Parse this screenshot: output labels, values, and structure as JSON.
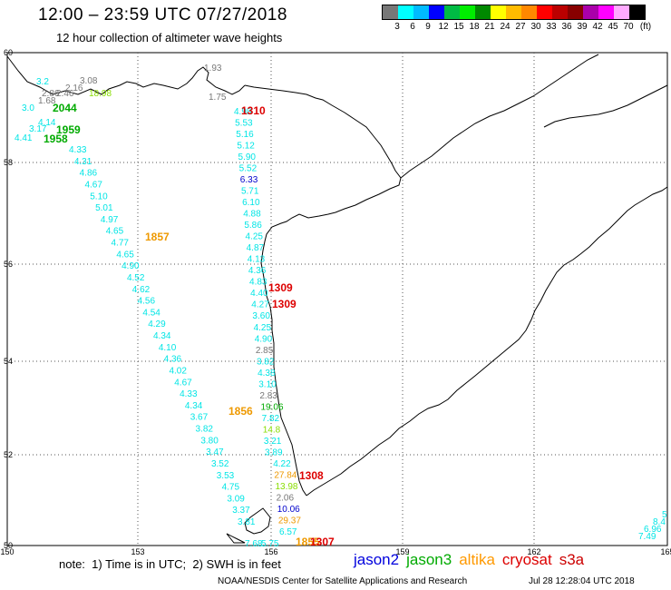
{
  "header": {
    "title": "12:00 – 23:59 UTC 07/27/2018",
    "subtitle": "12 hour collection of altimeter wave heights"
  },
  "legend": {
    "colors": [
      "#777777",
      "#00ffff",
      "#00bbff",
      "#0000ff",
      "#00bb44",
      "#00ee00",
      "#008800",
      "#ffff00",
      "#ffbb00",
      "#ff8800",
      "#ff0000",
      "#bb0000",
      "#880000",
      "#aa00aa",
      "#ff00ff",
      "#ffaaff",
      "#000000"
    ],
    "ticks": [
      "3",
      "6",
      "9",
      "12",
      "15",
      "18",
      "21",
      "24",
      "27",
      "30",
      "33",
      "36",
      "39",
      "42",
      "45",
      "70",
      "(ft)"
    ]
  },
  "axes": {
    "lon_ticks": [
      "150",
      "153",
      "156",
      "159",
      "162",
      "165"
    ],
    "lat_ticks": [
      "60",
      "58",
      "56",
      "54",
      "52",
      "50"
    ]
  },
  "colors": {
    "cyan": "#00e5e5",
    "gray": "#777777",
    "green": "#00aa00",
    "lightgreen": "#88dd00",
    "orange": "#ee9900",
    "red": "#dd0000",
    "blue": "#0000cc"
  },
  "track_a": {
    "color": "cyan",
    "values": [
      "4.33",
      "4.31",
      "4.86",
      "4.67",
      "5.10",
      "5.01",
      "4.97",
      "4.65",
      "4.77",
      "4.65",
      "4.90",
      "4.52",
      "4.62",
      "4.56",
      "4.54",
      "4.29",
      "4.34",
      "4.10",
      "4.36",
      "4.02",
      "4.67",
      "4.33",
      "4.34",
      "3.67",
      "3.82",
      "3.80",
      "3.47",
      "3.52",
      "3.53",
      "4.75",
      "3.09",
      "3.37",
      "3.81"
    ]
  },
  "track_b": {
    "values": [
      {
        "v": "4.98",
        "c": "cyan"
      },
      {
        "v": "5.53",
        "c": "cyan"
      },
      {
        "v": "5.16",
        "c": "cyan"
      },
      {
        "v": "5.12",
        "c": "cyan"
      },
      {
        "v": "5.90",
        "c": "cyan"
      },
      {
        "v": "5.52",
        "c": "cyan"
      },
      {
        "v": "6.33",
        "c": "blue"
      },
      {
        "v": "5.71",
        "c": "cyan"
      },
      {
        "v": "6.10",
        "c": "cyan"
      },
      {
        "v": "4.88",
        "c": "cyan"
      },
      {
        "v": "5.86",
        "c": "cyan"
      },
      {
        "v": "4.25",
        "c": "cyan"
      },
      {
        "v": "4.87",
        "c": "cyan"
      },
      {
        "v": "4.13",
        "c": "cyan"
      },
      {
        "v": "4.36",
        "c": "cyan"
      },
      {
        "v": "4.83",
        "c": "cyan"
      },
      {
        "v": "4.40",
        "c": "cyan"
      },
      {
        "v": "4.27",
        "c": "cyan"
      },
      {
        "v": "3.60",
        "c": "cyan"
      },
      {
        "v": "4.25",
        "c": "cyan"
      },
      {
        "v": "4.90",
        "c": "cyan"
      },
      {
        "v": "2.85",
        "c": "gray"
      },
      {
        "v": "3.82",
        "c": "cyan"
      },
      {
        "v": "4.38",
        "c": "cyan"
      },
      {
        "v": "3.10",
        "c": "cyan"
      },
      {
        "v": "2.83",
        "c": "gray"
      },
      {
        "v": "19.06",
        "c": "green"
      },
      {
        "v": "7.82",
        "c": "cyan"
      },
      {
        "v": "14.8",
        "c": "lightgreen"
      },
      {
        "v": "3.21",
        "c": "cyan"
      },
      {
        "v": "3.89",
        "c": "cyan"
      },
      {
        "v": "4.22",
        "c": "cyan"
      },
      {
        "v": "27.84",
        "c": "orange"
      },
      {
        "v": "13.98",
        "c": "lightgreen"
      },
      {
        "v": "2.06",
        "c": "gray"
      },
      {
        "v": "10.06",
        "c": "blue"
      },
      {
        "v": "29.37",
        "c": "orange"
      },
      {
        "v": "6.57",
        "c": "cyan"
      }
    ]
  },
  "top_left_values": [
    {
      "v": "3.08",
      "c": "gray"
    },
    {
      "v": "2.16",
      "c": "gray"
    },
    {
      "v": "2.86",
      "c": "gray"
    },
    {
      "v": "2.46",
      "c": "gray"
    },
    {
      "v": "1.68",
      "c": "gray"
    },
    {
      "v": "18.98",
      "c": "lightgreen"
    },
    {
      "v": "3.2",
      "c": "cyan"
    },
    {
      "v": "3.0",
      "c": "cyan"
    },
    {
      "v": "4.14",
      "c": "cyan"
    },
    {
      "v": "3.17",
      "c": "cyan"
    },
    {
      "v": "4.41",
      "c": "cyan"
    },
    {
      "v": "1.93",
      "c": "gray"
    },
    {
      "v": "1.75",
      "c": "gray"
    }
  ],
  "bottom_values": [
    {
      "v": "7.68",
      "c": "cyan"
    },
    {
      "v": "5.75",
      "c": "cyan"
    }
  ],
  "right_values": [
    {
      "v": "5",
      "c": "cyan"
    },
    {
      "v": "8.4",
      "c": "cyan"
    },
    {
      "v": "6.96",
      "c": "cyan"
    },
    {
      "v": "7.49",
      "c": "cyan"
    }
  ],
  "time_labels": [
    {
      "v": "2044",
      "c": "green"
    },
    {
      "v": "1959",
      "c": "green"
    },
    {
      "v": "1958",
      "c": "green"
    },
    {
      "v": "1310",
      "c": "red"
    },
    {
      "v": "1857",
      "c": "orange"
    },
    {
      "v": "1309",
      "c": "red"
    },
    {
      "v": "1309",
      "c": "red"
    },
    {
      "v": "1856",
      "c": "orange"
    },
    {
      "v": "1308",
      "c": "red"
    },
    {
      "v": "1855",
      "c": "orange"
    },
    {
      "v": "1307",
      "c": "red"
    }
  ],
  "footer": {
    "note": "note:  1) Time is in UTC;  2) SWH is in feet",
    "satellites": [
      {
        "name": "jason2",
        "color": "#0000dd"
      },
      {
        "name": "jason3",
        "color": "#00aa00"
      },
      {
        "name": "altika",
        "color": "#ff9900"
      },
      {
        "name": "cryosat",
        "color": "#dd0000"
      },
      {
        "name": "s3a",
        "color": "#cc0000"
      }
    ],
    "credit": "NOAA/NESDIS Center for Satellite Applications and Research",
    "timestamp": "Jul 28 12:28:04 UTC 2018"
  }
}
